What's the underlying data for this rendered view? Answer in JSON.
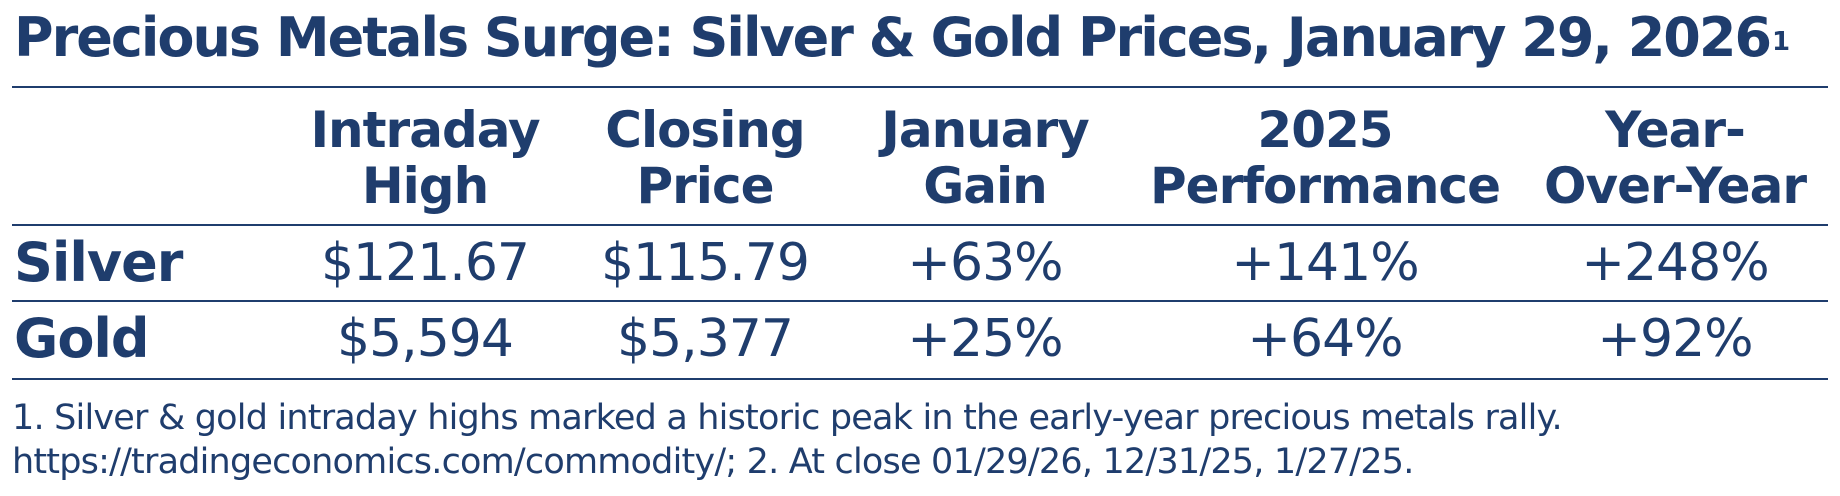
{
  "title": {
    "text": "Precious Metals Surge: Silver & Gold Prices, January 29, 2026",
    "footnote_marker": "1"
  },
  "table": {
    "headers": [
      {
        "line1": "Intraday",
        "line2": "High"
      },
      {
        "line1": "Closing",
        "line2": "Price"
      },
      {
        "line1": "January",
        "line2": "Gain"
      },
      {
        "line1": "2025",
        "line2": "Performance"
      },
      {
        "line1": "Year-",
        "line2": "Over-Year"
      }
    ],
    "rows": [
      {
        "label": "Silver",
        "values": [
          "$121.67",
          "$115.79",
          "+63%",
          "+141%",
          "+248%"
        ]
      },
      {
        "label": "Gold",
        "values": [
          "$5,594",
          "$5,377",
          "+25%",
          "+64%",
          "+92%"
        ]
      }
    ]
  },
  "footnote": {
    "line1": "1. Silver & gold intraday highs marked a historic peak in the early-year precious metals rally.",
    "line2": "https://tradingeconomics.com/commodity/; 2. At close 01/29/26, 12/31/25, 1/27/25."
  },
  "colors": {
    "text": "#1f3d6d",
    "rule": "#1f3d6d",
    "background": "#ffffff"
  }
}
